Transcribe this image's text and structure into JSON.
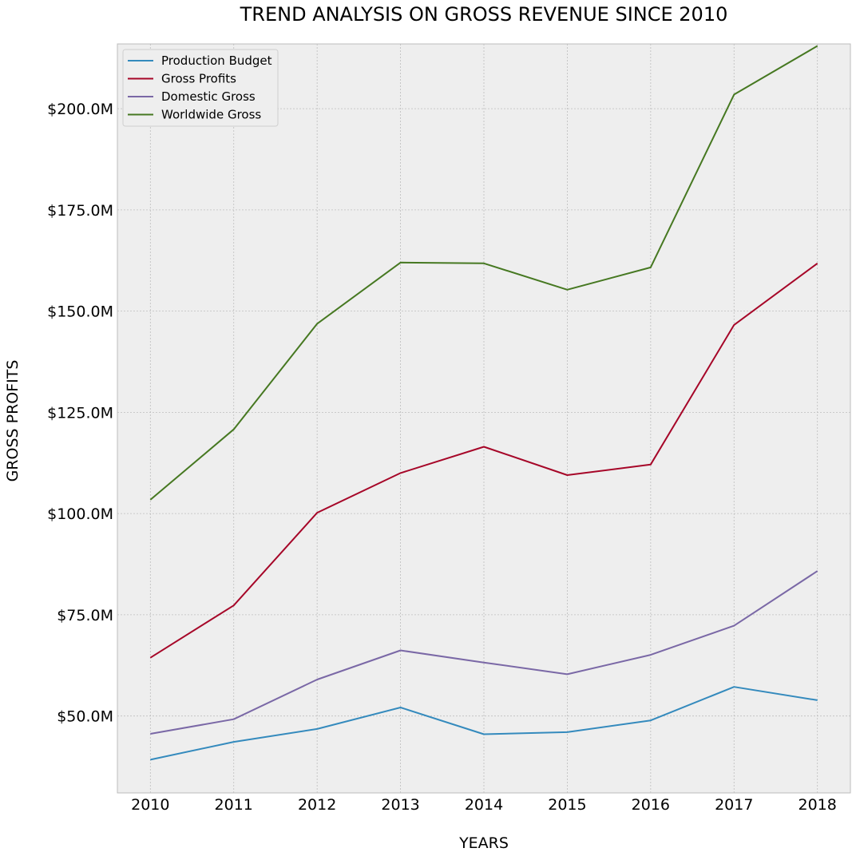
{
  "chart_data": {
    "type": "line",
    "title": "TREND ANALYSIS ON GROSS REVENUE SINCE 2010",
    "xlabel": "YEARS",
    "ylabel": "GROSS PROFITS",
    "x": [
      "2010",
      "2011",
      "2012",
      "2013",
      "2014",
      "2015",
      "2016",
      "2017",
      "2018"
    ],
    "ylim": [
      31000000,
      216000000
    ],
    "yticks": [
      50000000,
      75000000,
      100000000,
      125000000,
      150000000,
      175000000,
      200000000
    ],
    "ytick_labels": [
      "$50.0M",
      "$75.0M",
      "$100.0M",
      "$125.0M",
      "$150.0M",
      "$175.0M",
      "$200.0M"
    ],
    "grid": true,
    "legend_position": "top-left",
    "background_color": "#eeeeee",
    "series": [
      {
        "name": "Production Budget",
        "color": "#348abd",
        "values": [
          39200000,
          43600000,
          46800000,
          52100000,
          45500000,
          46000000,
          48900000,
          57200000,
          53900000
        ]
      },
      {
        "name": "Gross Profits",
        "color": "#a60628",
        "values": [
          64400000,
          77300000,
          100200000,
          110000000,
          116500000,
          109500000,
          112100000,
          146600000,
          161800000
        ]
      },
      {
        "name": "Domestic Gross",
        "color": "#7a68a6",
        "values": [
          45600000,
          49200000,
          59000000,
          66200000,
          63200000,
          60300000,
          65100000,
          72300000,
          85800000
        ]
      },
      {
        "name": "Worldwide Gross",
        "color": "#467821",
        "values": [
          103400000,
          120800000,
          146900000,
          162000000,
          161800000,
          155300000,
          160800000,
          203500000,
          215500000
        ]
      }
    ]
  }
}
